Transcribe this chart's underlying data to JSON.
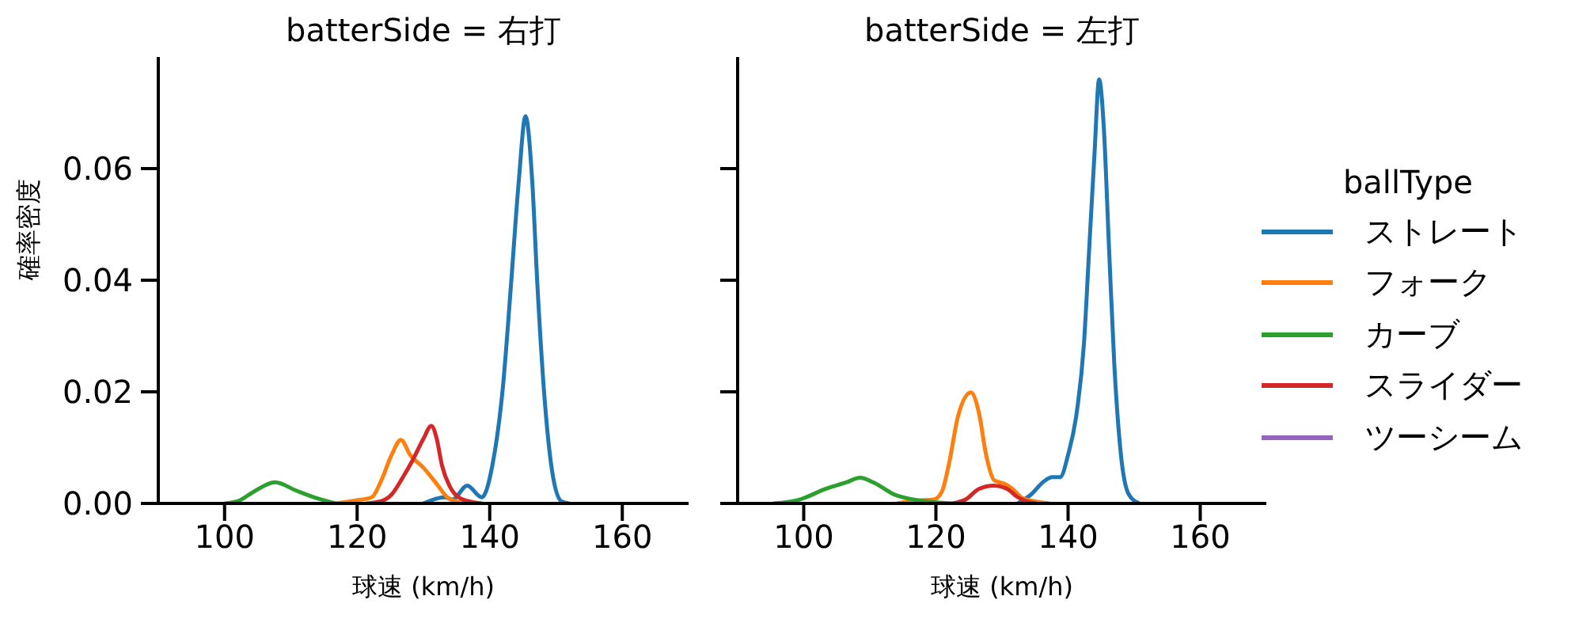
{
  "chart_data": [
    {
      "type": "line",
      "title": "batterSide = 右打",
      "xlabel": "球速 (km/h)",
      "ylabel": "確率密度",
      "xlim": [
        90,
        170
      ],
      "xticks": [
        100,
        120,
        140,
        160
      ],
      "ylim": [
        0,
        0.08
      ],
      "yticks": [
        {
          "value": 0,
          "label": "0.00"
        },
        {
          "value": 0.02,
          "label": "0.02"
        },
        {
          "value": 0.04,
          "label": "0.04"
        },
        {
          "value": 0.06,
          "label": "0.06"
        }
      ],
      "series": [
        {
          "color": "#1f77b4",
          "x": [
            130,
            133.2,
            134.4,
            136.6,
            138.8,
            140.4,
            142,
            143.2,
            144.4,
            145.4,
            146.4,
            147.2,
            148.2,
            149.4,
            150.8,
            152
          ],
          "values": [
            0,
            0.0011,
            0.0007,
            0.0032,
            0.0011,
            0.0068,
            0.021,
            0.039,
            0.058,
            0.0694,
            0.058,
            0.039,
            0.02,
            0.0059,
            0.0004,
            0
          ]
        },
        {
          "color": "#ff7f0e",
          "x": [
            116.8,
            119.6,
            122.2,
            123.6,
            125.2,
            126.6,
            128,
            130,
            132,
            133.6,
            134.8,
            136.4
          ],
          "values": [
            0,
            0.0005,
            0.0011,
            0.004,
            0.0087,
            0.0114,
            0.0087,
            0.0064,
            0.0035,
            0.0011,
            0.0004,
            0
          ]
        },
        {
          "color": "#2ca02c",
          "x": [
            100,
            102,
            104.4,
            107.6,
            110.8,
            114,
            116.8
          ],
          "values": [
            0,
            0.0004,
            0.0021,
            0.0038,
            0.0023,
            0.0009,
            0
          ]
        },
        {
          "color": "#d62728",
          "x": [
            121.4,
            123.6,
            125.2,
            126.8,
            128.4,
            130,
            131.2,
            132,
            132.8,
            134,
            135.6,
            138.8
          ],
          "values": [
            0,
            0.0004,
            0.0016,
            0.0045,
            0.0078,
            0.0116,
            0.0139,
            0.0116,
            0.0068,
            0.003,
            0.0009,
            0
          ]
        }
      ]
    },
    {
      "type": "line",
      "title": "batterSide = 左打",
      "xlabel": "球速 (km/h)",
      "legend_title": "ballType",
      "legend": "right",
      "tick_labels": "x",
      "xlim": [
        90,
        170
      ],
      "xticks": [
        100,
        120,
        140,
        160
      ],
      "ylim": [
        0,
        0.08
      ],
      "yticks": [
        0,
        0.02,
        0.04,
        0.06
      ],
      "series": [
        {
          "name": "ストレート",
          "color": "#1f77b4",
          "x": [
            132.4,
            134.4,
            136.4,
            137.6,
            138.8,
            140,
            141.2,
            142.4,
            143.2,
            144,
            144.7,
            145.4,
            146.2,
            147,
            148,
            149.2,
            150.8
          ],
          "values": [
            0,
            0.0016,
            0.004,
            0.0047,
            0.0047,
            0.0087,
            0.0154,
            0.0286,
            0.0457,
            0.0627,
            0.076,
            0.0675,
            0.0457,
            0.0248,
            0.0087,
            0.0016,
            0
          ]
        },
        {
          "name": "フォーク",
          "color": "#ff7f0e",
          "x": [
            114.1,
            116.9,
            119.7,
            120.9,
            122.1,
            123.3,
            125.3,
            126.5,
            127.6,
            128.8,
            130.4,
            131.6,
            133.2,
            137.2
          ],
          "values": [
            0,
            0.0005,
            0.0007,
            0.0021,
            0.0078,
            0.0154,
            0.0199,
            0.0163,
            0.0087,
            0.0042,
            0.0035,
            0.0026,
            0.0009,
            0
          ]
        },
        {
          "name": "カーブ",
          "color": "#2ca02c",
          "x": [
            95.4,
            99.4,
            103.3,
            106.5,
            108.5,
            110.5,
            113.7,
            117.7,
            122.5
          ],
          "values": [
            0,
            0.0007,
            0.0026,
            0.0038,
            0.0046,
            0.0038,
            0.0016,
            0.0005,
            0
          ]
        },
        {
          "name": "スライダー",
          "color": "#d62728",
          "x": [
            122.5,
            124.5,
            126.5,
            128.8,
            130.8,
            132.4,
            135.2
          ],
          "values": [
            0,
            0.0007,
            0.0026,
            0.0032,
            0.0026,
            0.0011,
            0
          ]
        },
        {
          "name": "ツーシーム",
          "color": "#9467bd"
        }
      ]
    }
  ]
}
